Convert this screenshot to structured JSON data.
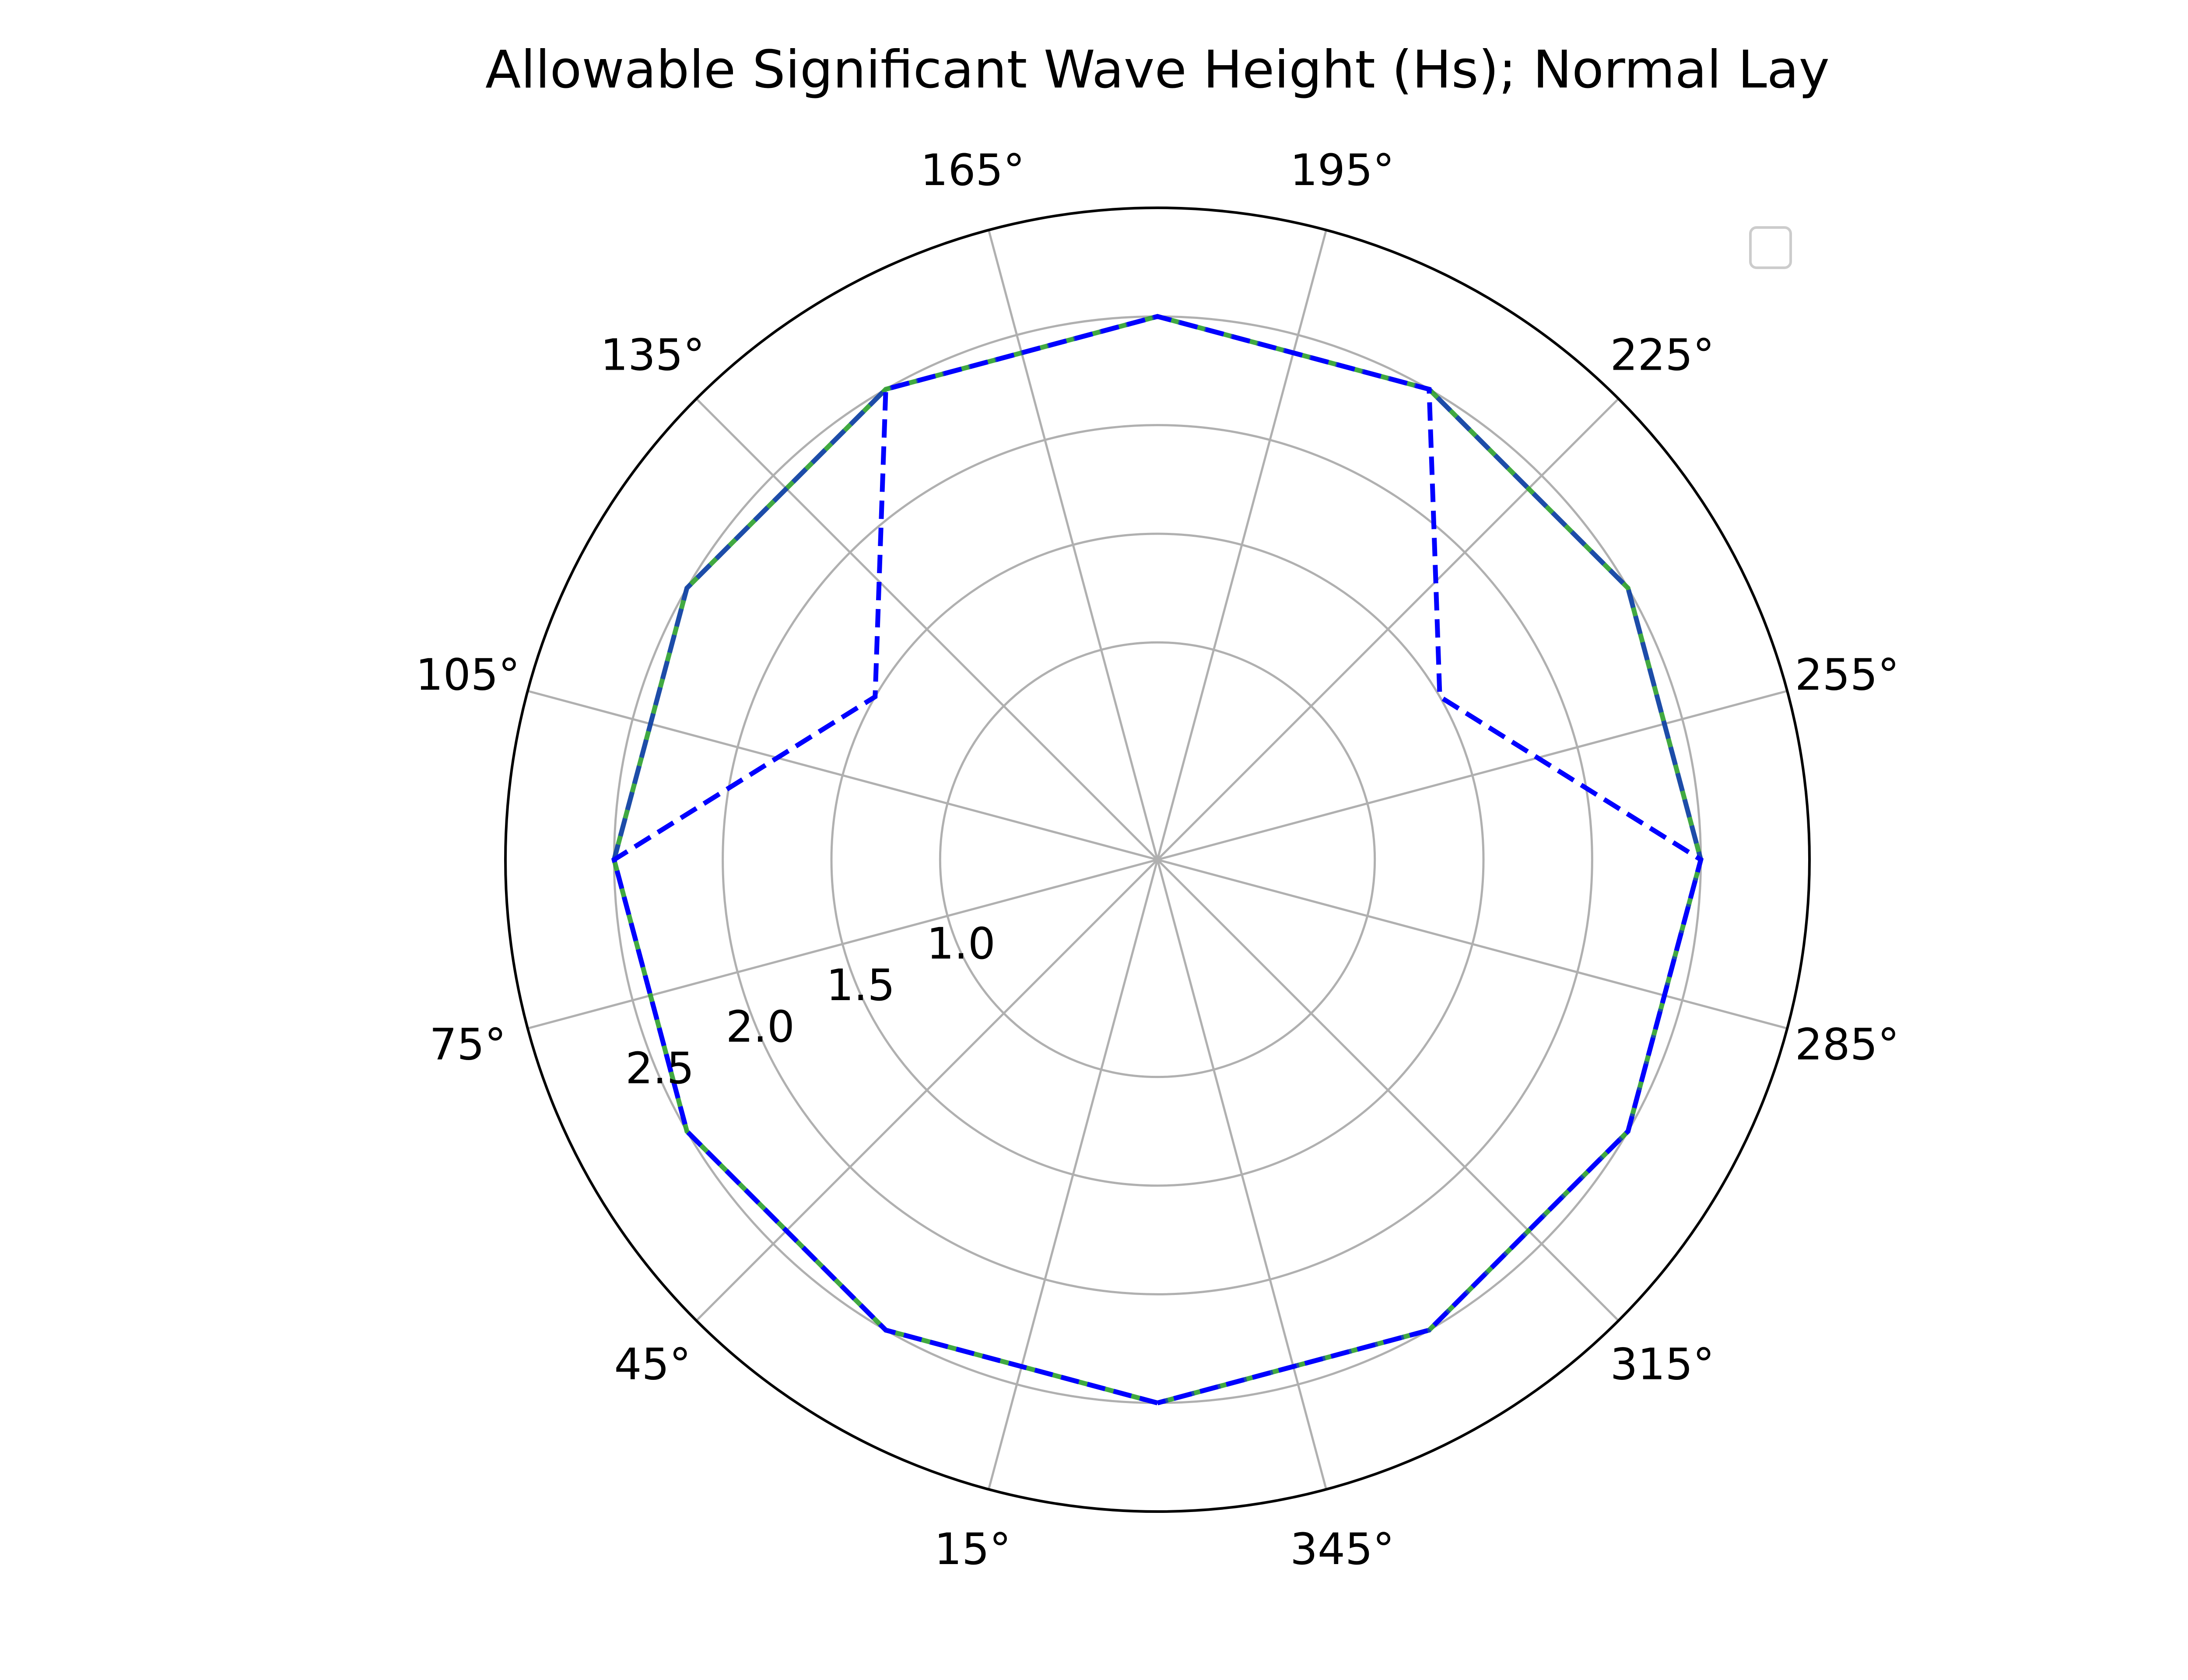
{
  "chart_data": {
    "type": "polar-line",
    "title": "Allowable Significant Wave Height (Hs); Normal Lay",
    "theta_unit": "degrees",
    "theta_direction": "clockwise",
    "theta_zero_location": "south",
    "theta_ticks": [
      {
        "label": "15°",
        "value": 15
      },
      {
        "label": "45°",
        "value": 45
      },
      {
        "label": "75°",
        "value": 75
      },
      {
        "label": "105°",
        "value": 105
      },
      {
        "label": "135°",
        "value": 135
      },
      {
        "label": "165°",
        "value": 165
      },
      {
        "label": "195°",
        "value": 195
      },
      {
        "label": "225°",
        "value": 225
      },
      {
        "label": "255°",
        "value": 255
      },
      {
        "label": "285°",
        "value": 285
      },
      {
        "label": "315°",
        "value": 315
      },
      {
        "label": "345°",
        "value": 345
      }
    ],
    "r_ticks": [
      {
        "label": "1.0",
        "value": 1.0
      },
      {
        "label": "1.5",
        "value": 1.5
      },
      {
        "label": "2.0",
        "value": 2.0
      },
      {
        "label": "2.5",
        "value": 2.5
      }
    ],
    "r_range": [
      0.0,
      3.0
    ],
    "grid": true,
    "legend": {
      "position": "top-right",
      "entries": []
    },
    "series": [
      {
        "style": "solid",
        "color": "#2ca02c",
        "points": [
          {
            "theta": 0,
            "r": 2.5
          },
          {
            "theta": 30,
            "r": 2.5
          },
          {
            "theta": 60,
            "r": 2.5
          },
          {
            "theta": 90,
            "r": 2.5
          },
          {
            "theta": 120,
            "r": 2.5
          },
          {
            "theta": 150,
            "r": 2.5
          },
          {
            "theta": 180,
            "r": 2.5
          },
          {
            "theta": 210,
            "r": 2.5
          },
          {
            "theta": 240,
            "r": 2.5
          },
          {
            "theta": 270,
            "r": 2.5
          },
          {
            "theta": 300,
            "r": 2.5
          },
          {
            "theta": 330,
            "r": 2.5
          },
          {
            "theta": 360,
            "r": 2.5
          }
        ]
      },
      {
        "style": "dashed",
        "color": "#0000ff",
        "points": [
          {
            "theta": 0,
            "r": 2.5
          },
          {
            "theta": 30,
            "r": 2.5
          },
          {
            "theta": 60,
            "r": 2.5
          },
          {
            "theta": 90,
            "r": 2.5
          },
          {
            "theta": 120,
            "r": 2.5
          },
          {
            "theta": 150,
            "r": 2.5
          },
          {
            "theta": 180,
            "r": 2.5
          },
          {
            "theta": 210,
            "r": 2.5
          },
          {
            "theta": 240,
            "r": 2.5
          },
          {
            "theta": 270,
            "r": 2.5
          },
          {
            "theta": 300,
            "r": 2.5
          },
          {
            "theta": 330,
            "r": 2.5
          },
          {
            "theta": 360,
            "r": 2.5
          }
        ]
      },
      {
        "style": "dashed",
        "color": "#0000ff",
        "points": [
          {
            "theta": 0,
            "r": 2.5
          },
          {
            "theta": 30,
            "r": 2.5
          },
          {
            "theta": 60,
            "r": 2.5
          },
          {
            "theta": 90,
            "r": 2.5
          },
          {
            "theta": 120,
            "r": 1.5
          },
          {
            "theta": 150,
            "r": 2.5
          },
          {
            "theta": 180,
            "r": 2.5
          },
          {
            "theta": 210,
            "r": 2.5
          },
          {
            "theta": 240,
            "r": 1.5
          },
          {
            "theta": 270,
            "r": 2.5
          },
          {
            "theta": 300,
            "r": 2.5
          },
          {
            "theta": 330,
            "r": 2.5
          },
          {
            "theta": 360,
            "r": 2.5
          }
        ]
      }
    ]
  }
}
